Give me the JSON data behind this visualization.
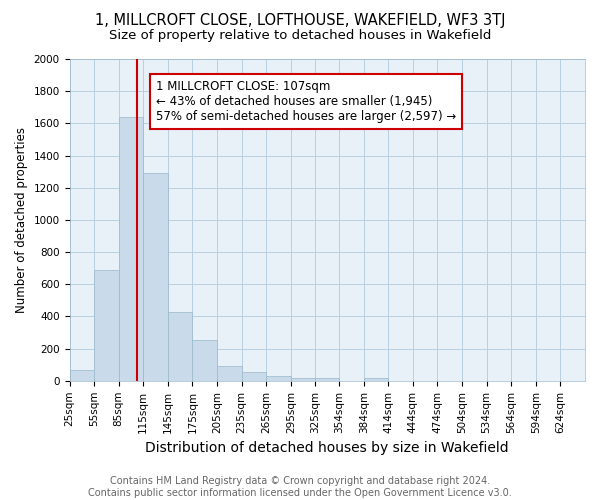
{
  "title": "1, MILLCROFT CLOSE, LOFTHOUSE, WAKEFIELD, WF3 3TJ",
  "subtitle": "Size of property relative to detached houses in Wakefield",
  "xlabel": "Distribution of detached houses by size in Wakefield",
  "ylabel": "Number of detached properties",
  "bin_labels": [
    "25sqm",
    "55sqm",
    "85sqm",
    "115sqm",
    "145sqm",
    "175sqm",
    "205sqm",
    "235sqm",
    "265sqm",
    "295sqm",
    "325sqm",
    "354sqm",
    "384sqm",
    "414sqm",
    "444sqm",
    "474sqm",
    "504sqm",
    "534sqm",
    "564sqm",
    "594sqm",
    "624sqm"
  ],
  "bin_edges": [
    25,
    55,
    85,
    115,
    145,
    175,
    205,
    235,
    265,
    295,
    325,
    354,
    384,
    414,
    444,
    474,
    504,
    534,
    564,
    594,
    624
  ],
  "bar_heights": [
    65,
    690,
    1640,
    1290,
    430,
    255,
    90,
    55,
    30,
    20,
    15,
    0,
    15,
    0,
    0,
    0,
    0,
    0,
    0,
    0
  ],
  "bar_color": "#c9daea",
  "bar_edgecolor": "#9ab8cc",
  "property_size": 107,
  "vline_color": "#cc0000",
  "annotation_text": "1 MILLCROFT CLOSE: 107sqm\n← 43% of detached houses are smaller (1,945)\n57% of semi-detached houses are larger (2,597) →",
  "annotation_box_facecolor": "#ffffff",
  "annotation_box_edgecolor": "#cc0000",
  "ylim": [
    0,
    2000
  ],
  "yticks": [
    0,
    200,
    400,
    600,
    800,
    1000,
    1200,
    1400,
    1600,
    1800,
    2000
  ],
  "grid_color": "#b8cfe0",
  "background_color": "#ffffff",
  "plot_background": "#e8f0f8",
  "footnote": "Contains HM Land Registry data © Crown copyright and database right 2024.\nContains public sector information licensed under the Open Government Licence v3.0.",
  "title_fontsize": 10.5,
  "subtitle_fontsize": 9.5,
  "xlabel_fontsize": 10,
  "ylabel_fontsize": 8.5,
  "tick_fontsize": 7.5,
  "annotation_fontsize": 8.5,
  "footnote_fontsize": 7
}
